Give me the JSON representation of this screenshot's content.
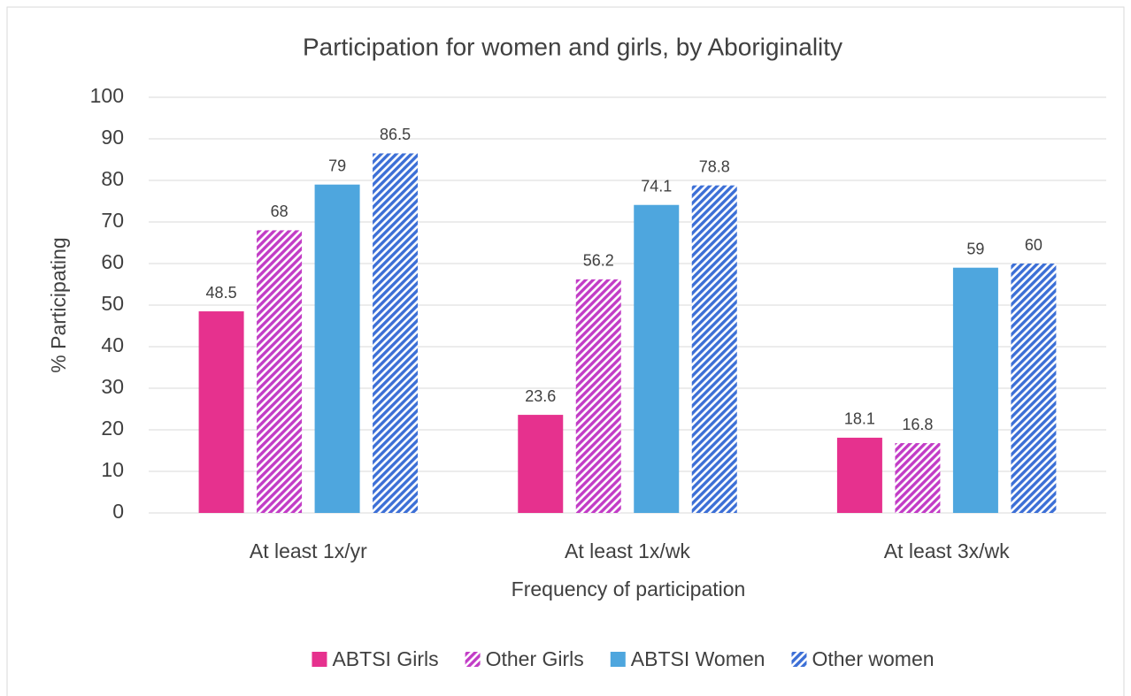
{
  "chart_data": {
    "type": "bar",
    "title": "Participation for women and girls, by Aboriginality",
    "x_label": "Frequency of participation",
    "y_label": "% Participating",
    "categories": [
      "At least 1x/yr",
      "At least 1x/wk",
      "At least 3x/wk"
    ],
    "series": [
      {
        "name": "ABTSI Girls",
        "color": "#e6318e",
        "pattern": "solid",
        "values": [
          48.5,
          23.6,
          18.1
        ]
      },
      {
        "name": "Other Girls",
        "color": "#c23cc6",
        "pattern": "hatch",
        "values": [
          68,
          56.2,
          16.8
        ]
      },
      {
        "name": "ABTSI Women",
        "color": "#4ea6de",
        "pattern": "solid",
        "values": [
          79,
          74.1,
          59
        ]
      },
      {
        "name": "Other women",
        "color": "#3c6fd6",
        "pattern": "hatch",
        "values": [
          86.5,
          78.8,
          60
        ]
      }
    ],
    "ylim": [
      0,
      100
    ],
    "yticks": [
      0,
      10,
      20,
      30,
      40,
      50,
      60,
      70,
      80,
      90,
      100
    ],
    "grid": true,
    "legend": "bottom"
  }
}
